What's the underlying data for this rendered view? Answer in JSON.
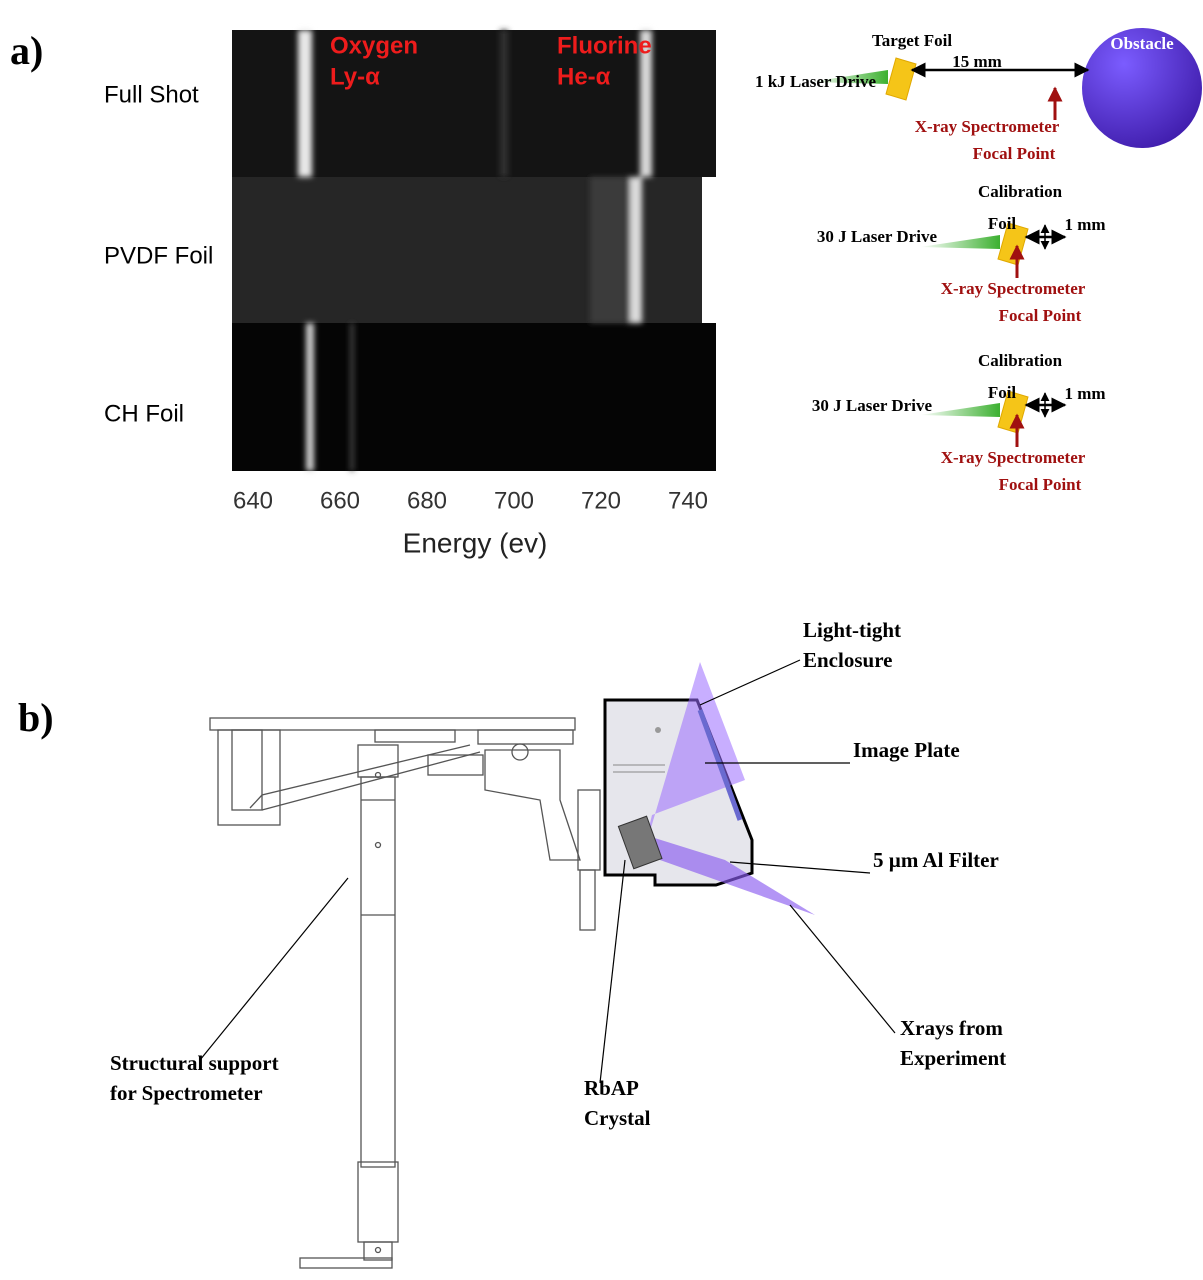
{
  "panel_a": {
    "label": "a)",
    "rows": [
      "Full Shot",
      "PVDF Foil",
      "CH Foil"
    ],
    "lines": [
      {
        "element": "Oxygen",
        "transition": "Ly-α"
      },
      {
        "element": "Fluorine",
        "transition": "He-α"
      }
    ],
    "x_axis": {
      "label": "Energy (ev)",
      "ticks": [
        640,
        660,
        680,
        700,
        720,
        740
      ]
    },
    "setups": [
      {
        "foil": [
          "Target Foil"
        ],
        "drive": "1 kJ Laser Drive",
        "distance": "15 mm",
        "obstacle": "Obstacle",
        "focal": [
          "X-ray Spectrometer",
          "Focal Point"
        ]
      },
      {
        "foil": [
          "Calibration",
          "Foil"
        ],
        "drive": "30 J Laser Drive",
        "distance": "1 mm",
        "focal": [
          "X-ray Spectrometer",
          "Focal Point"
        ]
      },
      {
        "foil": [
          "Calibration",
          "Foil"
        ],
        "drive": "30 J Laser Drive",
        "distance": "1 mm",
        "focal": [
          "X-ray Spectrometer",
          "Focal Point"
        ]
      }
    ]
  },
  "panel_b": {
    "label": "b)",
    "labels": [
      {
        "lines": [
          "Light-tight",
          "Enclosure"
        ]
      },
      {
        "lines": [
          "Image Plate"
        ]
      },
      {
        "lines": [
          "5 µm Al Filter"
        ]
      },
      {
        "lines": [
          "Xrays from",
          "Experiment"
        ]
      },
      {
        "lines": [
          "RbAP",
          "Crystal"
        ]
      },
      {
        "lines": [
          "Structural support",
          "for Spectrometer"
        ]
      }
    ]
  }
}
